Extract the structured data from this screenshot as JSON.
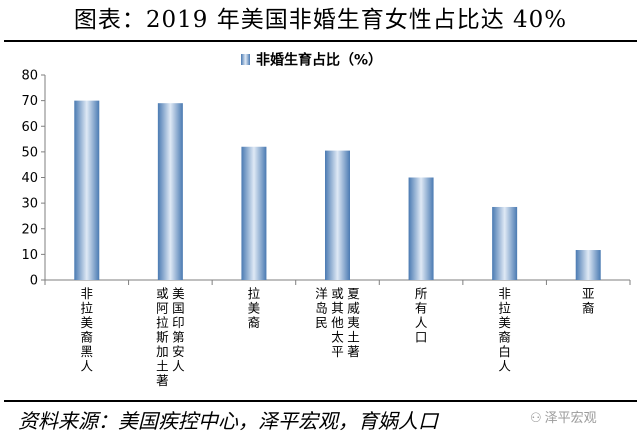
{
  "title": "图表：2019 年美国非婚生育女性占比达 40%",
  "source": "资料来源：美国疾控中心，泽平宏观，育娲人口",
  "watermark": {
    "icon": "wechat-icon",
    "text": "泽平宏观"
  },
  "chart_data": {
    "type": "bar",
    "title": "",
    "xlabel": "",
    "ylabel": "",
    "ylim": [
      0,
      80
    ],
    "yticks": [
      0,
      10,
      20,
      30,
      40,
      50,
      60,
      70,
      80
    ],
    "grid": false,
    "legend": {
      "position": "top-center",
      "entries": [
        "非婚生育占比（%）"
      ]
    },
    "categories": [
      [
        "非拉美裔黑人"
      ],
      [
        "美国印第安人",
        "或阿拉斯加土著"
      ],
      [
        "拉美裔"
      ],
      [
        "夏威夷土著",
        "或其他太平",
        "洋岛民"
      ],
      [
        "所有人口"
      ],
      [
        "非拉美裔白人"
      ],
      [
        "亚裔"
      ]
    ],
    "series": [
      {
        "name": "非婚生育占比（%）",
        "values": [
          70,
          69,
          52,
          50.5,
          40,
          28.5,
          11.7
        ]
      }
    ],
    "colors": {
      "bar_edge": "#4a7ab2",
      "bar_center": "#dfe9f5",
      "axis": "#7f7f7f"
    }
  }
}
